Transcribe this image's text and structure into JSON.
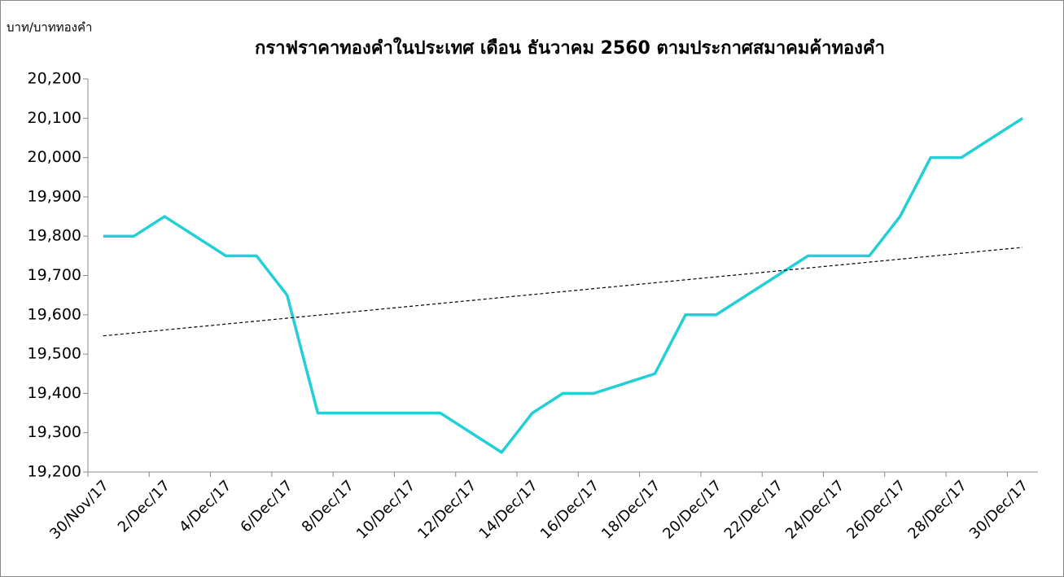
{
  "chart_data": {
    "type": "line",
    "title": "กราฟราคาทองคำในประเทศ เดือน ธันวาคม 2560 ตามประกาศสมาคมค้าทองคำ",
    "y_label": "บาท/บาททองคำ",
    "x": [
      "30/Nov/17",
      "1/Dec/17",
      "2/Dec/17",
      "4/Dec/17",
      "5/Dec/17",
      "6/Dec/17",
      "7/Dec/17",
      "11/Dec/17",
      "13/Dec/17",
      "14/Dec/17",
      "15/Dec/17",
      "16/Dec/17",
      "18/Dec/17",
      "19/Dec/17",
      "20/Dec/17",
      "23/Dec/17",
      "25/Dec/17",
      "26/Dec/17",
      "27/Dec/17",
      "28/Dec/17",
      "30/Dec/17"
    ],
    "series": [
      {
        "color": "#22cfd6",
        "values": [
          19800,
          19800,
          19850,
          19750,
          19750,
          19650,
          19350,
          19350,
          19250,
          19350,
          19400,
          19400,
          19450,
          19600,
          19600,
          19750,
          19750,
          19850,
          20000,
          20000,
          20100
        ]
      }
    ],
    "trendline": {
      "type": "linear",
      "color": "#000000",
      "dashed": true
    },
    "xlim": [
      "30/Nov/17",
      "30/Dec/17"
    ],
    "xticks": [
      "30/Nov/17",
      "2/Dec/17",
      "4/Dec/17",
      "6/Dec/17",
      "8/Dec/17",
      "10/Dec/17",
      "12/Dec/17",
      "14/Dec/17",
      "16/Dec/17",
      "18/Dec/17",
      "20/Dec/17",
      "22/Dec/17",
      "24/Dec/17",
      "26/Dec/17",
      "28/Dec/17",
      "30/Dec/17"
    ],
    "ylim": [
      19200,
      20200
    ],
    "yticks": [
      {
        "value": 19200,
        "label": "19,200"
      },
      {
        "value": 19300,
        "label": "19,300"
      },
      {
        "value": 19400,
        "label": "19,400"
      },
      {
        "value": 19500,
        "label": "19,500"
      },
      {
        "value": 19600,
        "label": "19,600"
      },
      {
        "value": 19700,
        "label": "19,700"
      },
      {
        "value": 19800,
        "label": "19,800"
      },
      {
        "value": 19900,
        "label": "19,900"
      },
      {
        "value": 20000,
        "label": "20,000"
      },
      {
        "value": 20100,
        "label": "20,100"
      },
      {
        "value": 20200,
        "label": "20,200"
      }
    ],
    "grid": false
  }
}
